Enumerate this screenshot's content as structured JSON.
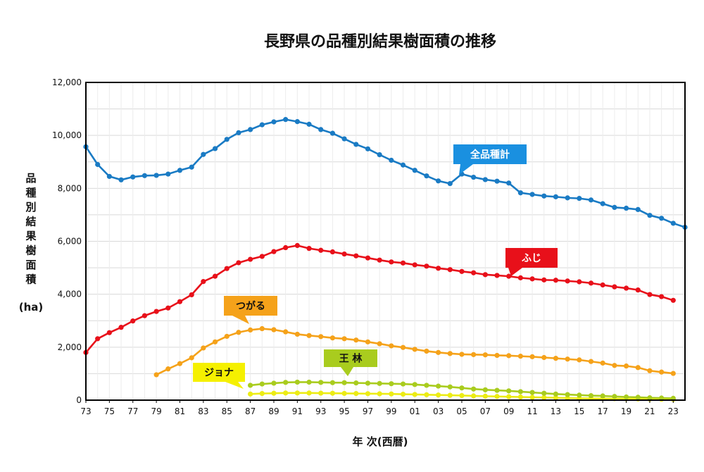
{
  "chart_data": {
    "type": "line",
    "title": "長野県の品種別結果樹面積の推移",
    "xlabel": "年 次(西暦)",
    "ylabel": "品種別結果樹面積",
    "yunit": "(ha)",
    "ylim": [
      0,
      12000
    ],
    "yticks": [
      "0",
      "2,000",
      "4,000",
      "6,000",
      "8,000",
      "10,000",
      "12,000"
    ],
    "x_start_year": 1973,
    "x_end_year": 2024,
    "xticks": [
      "73",
      "75",
      "77",
      "79",
      "81",
      "83",
      "85",
      "87",
      "89",
      "91",
      "93",
      "95",
      "97",
      "99",
      "01",
      "03",
      "05",
      "07",
      "09",
      "11",
      "13",
      "15",
      "17",
      "19",
      "21",
      "23"
    ],
    "grid": true,
    "series": [
      {
        "name": "全品種計",
        "color": "#1a7bc4",
        "label_bg": "#1a90e0",
        "label_fg": "#ffffff",
        "start_year": 1973,
        "values": [
          9570,
          8900,
          8450,
          8320,
          8430,
          8480,
          8490,
          8540,
          8680,
          8800,
          9280,
          9500,
          9850,
          10100,
          10220,
          10400,
          10510,
          10600,
          10520,
          10420,
          10220,
          10080,
          9870,
          9660,
          9490,
          9270,
          9060,
          8880,
          8680,
          8470,
          8280,
          8180,
          8540,
          8420,
          8330,
          8270,
          8200,
          7830,
          7770,
          7710,
          7680,
          7640,
          7620,
          7560,
          7420,
          7280,
          7250,
          7200,
          6980,
          6870,
          6680,
          6530
        ]
      },
      {
        "name": "ふじ",
        "color": "#e8101a",
        "label_bg": "#e8101a",
        "label_fg": "#ffffff",
        "start_year": 1973,
        "values": [
          1800,
          2320,
          2550,
          2750,
          2990,
          3190,
          3350,
          3480,
          3720,
          3980,
          4480,
          4680,
          4970,
          5190,
          5320,
          5430,
          5610,
          5760,
          5840,
          5730,
          5660,
          5600,
          5520,
          5450,
          5370,
          5290,
          5220,
          5180,
          5110,
          5060,
          4980,
          4930,
          4860,
          4810,
          4740,
          4710,
          4680,
          4620,
          4580,
          4540,
          4530,
          4500,
          4470,
          4420,
          4350,
          4280,
          4230,
          4160,
          3990,
          3910,
          3770
        ]
      },
      {
        "name": "つがる",
        "color": "#f5a21a",
        "label_bg": "#f5a21a",
        "label_fg": "#111111",
        "start_year": 1979,
        "values": [
          960,
          1180,
          1380,
          1600,
          1970,
          2200,
          2410,
          2560,
          2650,
          2700,
          2660,
          2580,
          2490,
          2440,
          2400,
          2350,
          2320,
          2270,
          2200,
          2130,
          2050,
          1990,
          1920,
          1850,
          1800,
          1760,
          1730,
          1720,
          1710,
          1690,
          1680,
          1660,
          1640,
          1610,
          1580,
          1550,
          1520,
          1460,
          1400,
          1310,
          1290,
          1230,
          1110,
          1060,
          1010
        ]
      },
      {
        "name": "王 林",
        "color": "#a9cc1e",
        "label_bg": "#a9cc1e",
        "label_fg": "#111111",
        "start_year": 1987,
        "values": [
          560,
          610,
          640,
          670,
          680,
          680,
          670,
          660,
          660,
          650,
          640,
          630,
          620,
          610,
          590,
          560,
          530,
          500,
          460,
          420,
          390,
          370,
          350,
          320,
          290,
          260,
          230,
          210,
          190,
          170,
          160,
          140,
          120,
          110,
          90,
          80,
          70
        ]
      },
      {
        "name": "ジョナ",
        "color": "#ecec14",
        "label_bg": "#f5f000",
        "label_fg": "#111111",
        "start_year": 1987,
        "values": [
          230,
          250,
          260,
          270,
          270,
          270,
          265,
          260,
          255,
          250,
          245,
          240,
          235,
          225,
          215,
          205,
          195,
          185,
          175,
          160,
          150,
          140,
          130,
          120,
          110,
          100,
          90,
          80,
          70,
          65,
          60,
          55,
          50,
          45,
          40,
          35,
          30
        ]
      }
    ],
    "callouts": [
      {
        "series": 0,
        "text": "全品種計"
      },
      {
        "series": 1,
        "text": "ふじ"
      },
      {
        "series": 2,
        "text": "つがる"
      },
      {
        "series": 3,
        "text": "王 林"
      },
      {
        "series": 4,
        "text": "ジョナ"
      }
    ]
  }
}
